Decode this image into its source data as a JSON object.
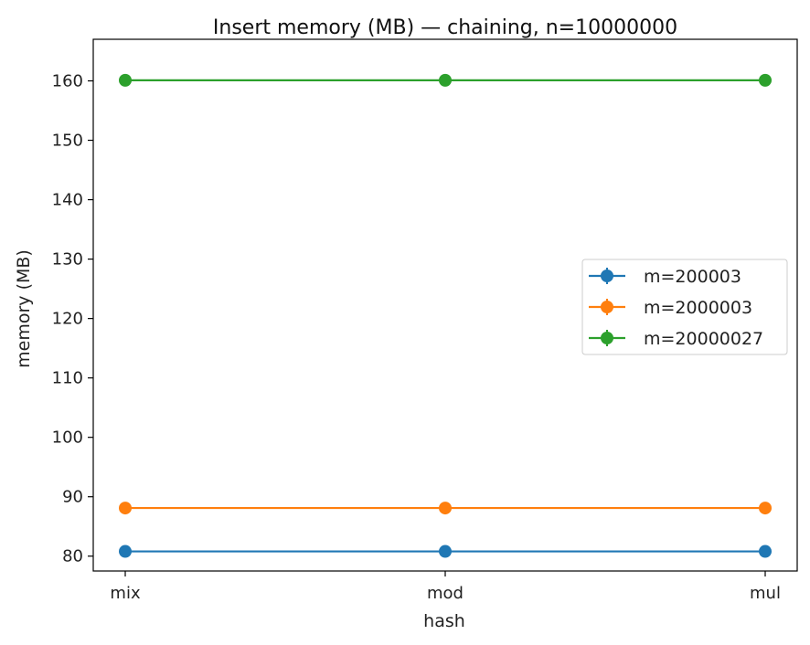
{
  "chart_data": {
    "type": "line",
    "title": "Insert memory (MB) — chaining, n=10000000",
    "xlabel": "hash",
    "ylabel": "memory (MB)",
    "categories": [
      "mix",
      "mod",
      "mul"
    ],
    "y_ticks": [
      80,
      90,
      100,
      110,
      120,
      130,
      140,
      150,
      160
    ],
    "ylim": [
      77.5,
      167.0
    ],
    "grid": false,
    "legend_placement": "center-right",
    "marker": "circle",
    "error_bars": true,
    "series": [
      {
        "name": "m=200003",
        "values": [
          80.8,
          80.8,
          80.8
        ],
        "color": "#1f77b4"
      },
      {
        "name": "m=2000003",
        "values": [
          88.1,
          88.1,
          88.1
        ],
        "color": "#ff7f0e"
      },
      {
        "name": "m=20000027",
        "values": [
          160.1,
          160.1,
          160.1
        ],
        "color": "#2ca02c"
      }
    ]
  }
}
